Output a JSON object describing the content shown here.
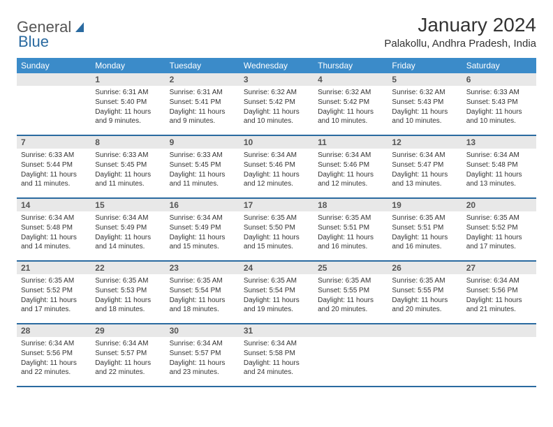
{
  "logo": {
    "text1": "General",
    "text2": "Blue"
  },
  "title": "January 2024",
  "location": "Palakollu, Andhra Pradesh, India",
  "colors": {
    "header_bg": "#3b8bc9",
    "header_text": "#ffffff",
    "daynum_bg": "#e8e8e8",
    "week_border": "#2a6aa0",
    "text": "#333333",
    "logo_blue": "#2a6aa0"
  },
  "weekdays": [
    "Sunday",
    "Monday",
    "Tuesday",
    "Wednesday",
    "Thursday",
    "Friday",
    "Saturday"
  ],
  "days": [
    {
      "n": "",
      "sr": "",
      "ss": "",
      "dl": ""
    },
    {
      "n": "1",
      "sr": "6:31 AM",
      "ss": "5:40 PM",
      "dl": "11 hours and 9 minutes."
    },
    {
      "n": "2",
      "sr": "6:31 AM",
      "ss": "5:41 PM",
      "dl": "11 hours and 9 minutes."
    },
    {
      "n": "3",
      "sr": "6:32 AM",
      "ss": "5:42 PM",
      "dl": "11 hours and 10 minutes."
    },
    {
      "n": "4",
      "sr": "6:32 AM",
      "ss": "5:42 PM",
      "dl": "11 hours and 10 minutes."
    },
    {
      "n": "5",
      "sr": "6:32 AM",
      "ss": "5:43 PM",
      "dl": "11 hours and 10 minutes."
    },
    {
      "n": "6",
      "sr": "6:33 AM",
      "ss": "5:43 PM",
      "dl": "11 hours and 10 minutes."
    },
    {
      "n": "7",
      "sr": "6:33 AM",
      "ss": "5:44 PM",
      "dl": "11 hours and 11 minutes."
    },
    {
      "n": "8",
      "sr": "6:33 AM",
      "ss": "5:45 PM",
      "dl": "11 hours and 11 minutes."
    },
    {
      "n": "9",
      "sr": "6:33 AM",
      "ss": "5:45 PM",
      "dl": "11 hours and 11 minutes."
    },
    {
      "n": "10",
      "sr": "6:34 AM",
      "ss": "5:46 PM",
      "dl": "11 hours and 12 minutes."
    },
    {
      "n": "11",
      "sr": "6:34 AM",
      "ss": "5:46 PM",
      "dl": "11 hours and 12 minutes."
    },
    {
      "n": "12",
      "sr": "6:34 AM",
      "ss": "5:47 PM",
      "dl": "11 hours and 13 minutes."
    },
    {
      "n": "13",
      "sr": "6:34 AM",
      "ss": "5:48 PM",
      "dl": "11 hours and 13 minutes."
    },
    {
      "n": "14",
      "sr": "6:34 AM",
      "ss": "5:48 PM",
      "dl": "11 hours and 14 minutes."
    },
    {
      "n": "15",
      "sr": "6:34 AM",
      "ss": "5:49 PM",
      "dl": "11 hours and 14 minutes."
    },
    {
      "n": "16",
      "sr": "6:34 AM",
      "ss": "5:49 PM",
      "dl": "11 hours and 15 minutes."
    },
    {
      "n": "17",
      "sr": "6:35 AM",
      "ss": "5:50 PM",
      "dl": "11 hours and 15 minutes."
    },
    {
      "n": "18",
      "sr": "6:35 AM",
      "ss": "5:51 PM",
      "dl": "11 hours and 16 minutes."
    },
    {
      "n": "19",
      "sr": "6:35 AM",
      "ss": "5:51 PM",
      "dl": "11 hours and 16 minutes."
    },
    {
      "n": "20",
      "sr": "6:35 AM",
      "ss": "5:52 PM",
      "dl": "11 hours and 17 minutes."
    },
    {
      "n": "21",
      "sr": "6:35 AM",
      "ss": "5:52 PM",
      "dl": "11 hours and 17 minutes."
    },
    {
      "n": "22",
      "sr": "6:35 AM",
      "ss": "5:53 PM",
      "dl": "11 hours and 18 minutes."
    },
    {
      "n": "23",
      "sr": "6:35 AM",
      "ss": "5:54 PM",
      "dl": "11 hours and 18 minutes."
    },
    {
      "n": "24",
      "sr": "6:35 AM",
      "ss": "5:54 PM",
      "dl": "11 hours and 19 minutes."
    },
    {
      "n": "25",
      "sr": "6:35 AM",
      "ss": "5:55 PM",
      "dl": "11 hours and 20 minutes."
    },
    {
      "n": "26",
      "sr": "6:35 AM",
      "ss": "5:55 PM",
      "dl": "11 hours and 20 minutes."
    },
    {
      "n": "27",
      "sr": "6:34 AM",
      "ss": "5:56 PM",
      "dl": "11 hours and 21 minutes."
    },
    {
      "n": "28",
      "sr": "6:34 AM",
      "ss": "5:56 PM",
      "dl": "11 hours and 22 minutes."
    },
    {
      "n": "29",
      "sr": "6:34 AM",
      "ss": "5:57 PM",
      "dl": "11 hours and 22 minutes."
    },
    {
      "n": "30",
      "sr": "6:34 AM",
      "ss": "5:57 PM",
      "dl": "11 hours and 23 minutes."
    },
    {
      "n": "31",
      "sr": "6:34 AM",
      "ss": "5:58 PM",
      "dl": "11 hours and 24 minutes."
    },
    {
      "n": "",
      "sr": "",
      "ss": "",
      "dl": ""
    },
    {
      "n": "",
      "sr": "",
      "ss": "",
      "dl": ""
    },
    {
      "n": "",
      "sr": "",
      "ss": "",
      "dl": ""
    }
  ],
  "labels": {
    "sunrise": "Sunrise:",
    "sunset": "Sunset:",
    "daylight": "Daylight:"
  }
}
